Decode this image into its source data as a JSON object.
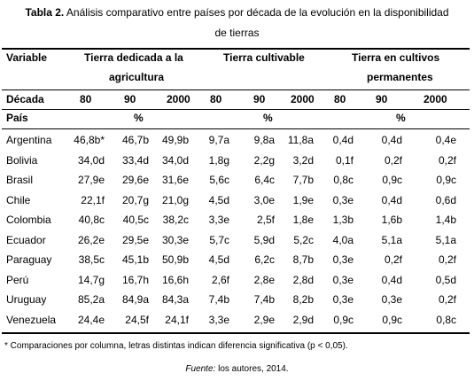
{
  "caption": {
    "label": "Tabla 2.",
    "text_line1": "Análisis comparativo entre países por década de la evolución en la disponibilidad",
    "text_line2": "de tierras"
  },
  "header": {
    "variable": "Variable",
    "group1_line1": "Tierra dedicada a la",
    "group1_line2": "agricultura",
    "group2": "Tierra cultivable",
    "group3_line1": "Tierra en cultivos",
    "group3_line2": "permanentes",
    "decada": "Década",
    "decades": [
      "80",
      "90",
      "2000"
    ],
    "pais": "País",
    "unit": "%"
  },
  "rows": [
    {
      "country": "Argentina",
      "values": [
        "46,8b*",
        "46,7b",
        "49,9b",
        "9,7a",
        "9,8a",
        "11,8a",
        "0,4d",
        "0,4d",
        "0,4e"
      ]
    },
    {
      "country": "Bolivia",
      "values": [
        "34,0d",
        "33,4d",
        "34,0d",
        "1,8g",
        "2,2g",
        "3,2d",
        "0,1f",
        "0,2f",
        "0,2f"
      ]
    },
    {
      "country": "Brasil",
      "values": [
        "27,9e",
        "29,6e",
        "31,6e",
        "5,6c",
        "6,4c",
        "7,7b",
        "0,8c",
        "0,9c",
        "0,9c"
      ]
    },
    {
      "country": "Chile",
      "values": [
        "22,1f",
        "20,7g",
        "21,0g",
        "4,5d",
        "3,0e",
        "1,9e",
        "0,3e",
        "0,4d",
        "0,6d"
      ]
    },
    {
      "country": "Colombia",
      "values": [
        "40,8c",
        "40,5c",
        "38,2c",
        "3,3e",
        "2,5f",
        "1,8e",
        "1,3b",
        "1,6b",
        "1,4b"
      ]
    },
    {
      "country": "Ecuador",
      "values": [
        "26,2e",
        "29,5e",
        "30,3e",
        "5,7c",
        "5,9d",
        "5,2c",
        "4,0a",
        "5,1a",
        "5,1a"
      ]
    },
    {
      "country": "Paraguay",
      "values": [
        "38,5c",
        "45,1b",
        "50,9b",
        "4,5d",
        "6,2c",
        "8,7b",
        "0,3e",
        "0,2f",
        "0,2f"
      ]
    },
    {
      "country": "Perú",
      "values": [
        "14,7g",
        "16,7h",
        "16,6h",
        "2,6f",
        "2,8e",
        "2,8d",
        "0,3e",
        "0,4d",
        "0,5d"
      ]
    },
    {
      "country": "Uruguay",
      "values": [
        "85,2a",
        "84,9a",
        "84,3a",
        "7,4b",
        "7,4b",
        "8,2b",
        "0,3e",
        "0,3e",
        "0,2f"
      ]
    },
    {
      "country": "Venezuela",
      "values": [
        "24,4e",
        "24,5f",
        "24,1f",
        "3,3e",
        "2,9e",
        "2,9d",
        "0,9c",
        "0,9c",
        "0,8c"
      ]
    }
  ],
  "footnote": "* Comparaciones por columna, letras distintas indican diferencia significativa (p < 0,05).",
  "source": {
    "label": "Fuente:",
    "text": " los autores, 2014."
  }
}
